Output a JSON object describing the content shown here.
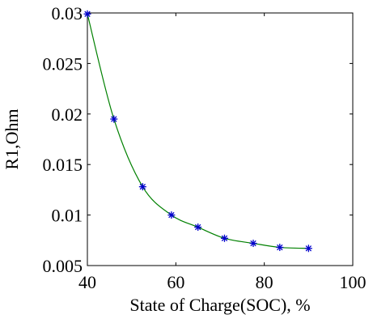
{
  "chart_data": {
    "type": "line",
    "title": "",
    "xlabel": "State of Charge(SOC), %",
    "ylabel": "R1,Ohm",
    "xlim": [
      40,
      100
    ],
    "ylim": [
      0.005,
      0.03
    ],
    "xticks": [
      "40",
      "60",
      "80",
      "100"
    ],
    "yticks": [
      "0.005",
      "0.01",
      "0.015",
      "0.02",
      "0.025",
      "0.03"
    ],
    "grid": false,
    "line_color": "#008000",
    "marker_color": "#0000cc",
    "marker": "asterisk",
    "series": [
      {
        "x": [
          40,
          46,
          52.5,
          59,
          65,
          71,
          77.5,
          83.5,
          90
        ],
        "y": [
          0.0299,
          0.0195,
          0.0128,
          0.01,
          0.0088,
          0.0077,
          0.0072,
          0.0068,
          0.0067
        ]
      }
    ]
  }
}
